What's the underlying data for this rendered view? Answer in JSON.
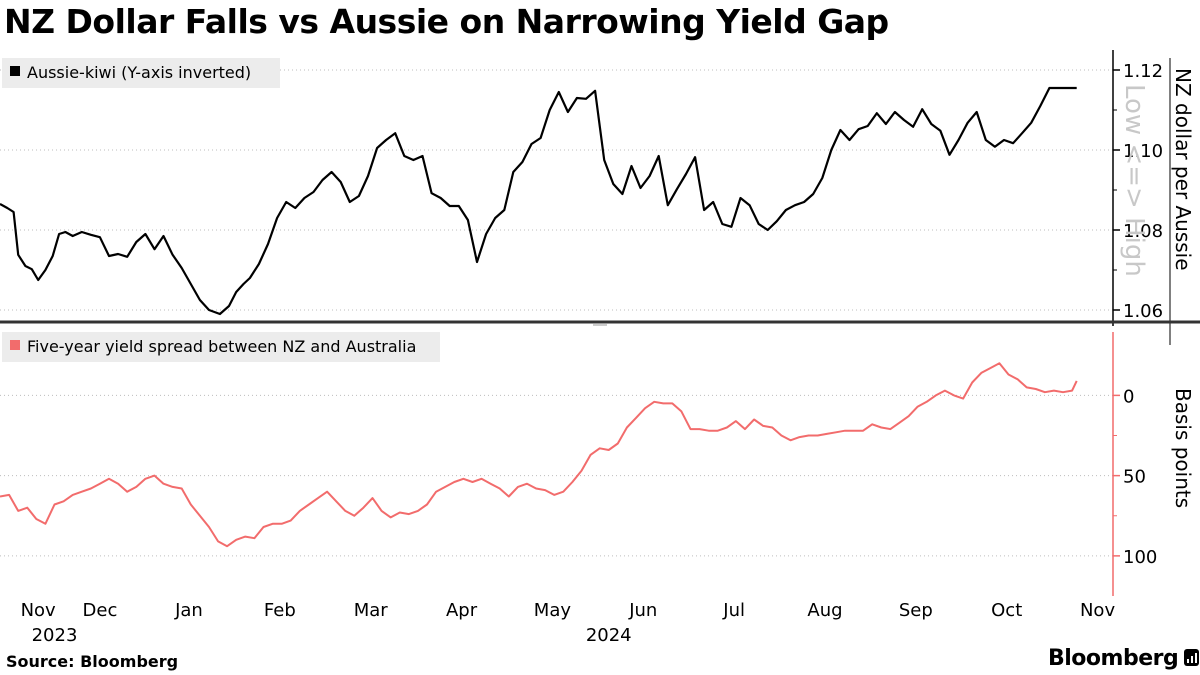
{
  "title": "NZ Dollar Falls vs Aussie on Narrowing Yield Gap",
  "source": "Source:  Bloomberg",
  "brand": "Bloomberg",
  "colors": {
    "line_top": "#000000",
    "line_bottom": "#f26c6c",
    "axis_bottom": "#f26c6c",
    "divider": "#333333",
    "grid": "#bdbdbd"
  },
  "chart_data": [
    {
      "type": "line",
      "title": "Aussie-kiwi (Y-axis inverted)",
      "legend": "Aussie-kiwi (Y-axis inverted)",
      "ylabel": "NZ dollar per Aussie",
      "ghost_label": "Low <=> High",
      "y_inverted": true,
      "ylim": [
        1.125,
        1.055
      ],
      "yticks": [
        1.06,
        1.08,
        1.1,
        1.12
      ],
      "ytick_labels": [
        "1.06",
        "1.08",
        "1.10",
        "1.12"
      ],
      "xlim": [
        0,
        12.25
      ],
      "series": [
        {
          "name": "Aussie-kiwi",
          "x": [
            0,
            0.08,
            0.15,
            0.2,
            0.28,
            0.35,
            0.42,
            0.5,
            0.58,
            0.65,
            0.72,
            0.8,
            0.9,
            1.0,
            1.1,
            1.2,
            1.3,
            1.4,
            1.5,
            1.6,
            1.7,
            1.8,
            1.9,
            2.0,
            2.1,
            2.2,
            2.3,
            2.42,
            2.52,
            2.6,
            2.68,
            2.75,
            2.85,
            2.95,
            3.05,
            3.15,
            3.25,
            3.35,
            3.45,
            3.55,
            3.65,
            3.75,
            3.85,
            3.95,
            4.05,
            4.15,
            4.25,
            4.35,
            4.45,
            4.55,
            4.65,
            4.75,
            4.85,
            4.95,
            5.05,
            5.15,
            5.25,
            5.35,
            5.45,
            5.55,
            5.65,
            5.75,
            5.85,
            5.95,
            6.05,
            6.15,
            6.25,
            6.35,
            6.45,
            6.55,
            6.65,
            6.75,
            6.85,
            6.95,
            7.05,
            7.15,
            7.25,
            7.35,
            7.45,
            7.55,
            7.65,
            7.75,
            7.85,
            7.95,
            8.05,
            8.15,
            8.25,
            8.35,
            8.45,
            8.55,
            8.65,
            8.75,
            8.85,
            8.95,
            9.05,
            9.15,
            9.25,
            9.35,
            9.45,
            9.55,
            9.65,
            9.75,
            9.85,
            9.95,
            10.05,
            10.15,
            10.25,
            10.35,
            10.45,
            10.55,
            10.65,
            10.75,
            10.85,
            10.95,
            11.05,
            11.15,
            11.25,
            11.35,
            11.45,
            11.55,
            11.65,
            11.75,
            11.85
          ],
          "values": [
            1.0865,
            1.0855,
            1.0845,
            1.0738,
            1.071,
            1.0702,
            1.0675,
            1.07,
            1.0735,
            1.079,
            1.0795,
            1.0785,
            1.0795,
            1.0788,
            1.0782,
            1.0735,
            1.074,
            1.0733,
            1.077,
            1.079,
            1.0752,
            1.0785,
            1.0738,
            1.0705,
            1.0665,
            1.0625,
            1.06,
            1.059,
            1.061,
            1.0645,
            1.0665,
            1.068,
            1.0715,
            1.0765,
            1.083,
            1.087,
            1.0855,
            1.088,
            1.0895,
            1.0925,
            1.0945,
            1.092,
            1.087,
            1.0885,
            1.0935,
            1.1005,
            1.1025,
            1.1042,
            1.0985,
            1.0975,
            1.0985,
            1.0892,
            1.088,
            1.086,
            1.086,
            1.0825,
            1.072,
            1.079,
            1.083,
            1.085,
            1.0945,
            1.097,
            1.1015,
            1.103,
            1.11,
            1.1145,
            1.1095,
            1.113,
            1.1128,
            1.1148,
            1.0975,
            1.0915,
            1.089,
            1.096,
            1.0905,
            1.0935,
            1.0985,
            1.0862,
            1.0902,
            1.094,
            1.0982,
            1.085,
            1.087,
            1.0815,
            1.0808,
            1.088,
            1.0862,
            1.0815,
            1.08,
            1.0822,
            1.085,
            1.0862,
            1.087,
            1.089,
            1.093,
            1.1,
            1.105,
            1.1025,
            1.1052,
            1.106,
            1.1092,
            1.1065,
            1.1095,
            1.1075,
            1.1058,
            1.1102,
            1.1065,
            1.1048,
            1.0988,
            1.1025,
            1.1068,
            1.1095,
            1.1025,
            1.1008,
            1.1025,
            1.1017,
            1.1042,
            1.1068,
            1.111,
            1.1155,
            1.1155,
            1.1155,
            1.1155
          ]
        }
      ]
    },
    {
      "type": "line",
      "title": "Five-year yield spread between NZ and Australia",
      "legend": "Five-year yield spread between NZ and Australia",
      "ylabel": "Basis points",
      "ylim": [
        -37,
        125
      ],
      "yticks": [
        0,
        50,
        100
      ],
      "ytick_labels": [
        "0",
        "50",
        "100"
      ],
      "xlim": [
        0,
        12.25
      ],
      "series": [
        {
          "name": "Five-year yield spread between NZ and Australia",
          "x": [
            0,
            0.1,
            0.2,
            0.3,
            0.4,
            0.5,
            0.6,
            0.7,
            0.8,
            0.9,
            1.0,
            1.1,
            1.2,
            1.3,
            1.4,
            1.5,
            1.6,
            1.7,
            1.8,
            1.9,
            2.0,
            2.1,
            2.2,
            2.3,
            2.4,
            2.5,
            2.6,
            2.7,
            2.8,
            2.9,
            3.0,
            3.1,
            3.2,
            3.3,
            3.4,
            3.5,
            3.6,
            3.7,
            3.8,
            3.9,
            4.0,
            4.1,
            4.2,
            4.3,
            4.4,
            4.5,
            4.6,
            4.7,
            4.8,
            4.9,
            5.0,
            5.1,
            5.2,
            5.3,
            5.4,
            5.5,
            5.6,
            5.7,
            5.8,
            5.9,
            6.0,
            6.1,
            6.2,
            6.3,
            6.4,
            6.5,
            6.6,
            6.7,
            6.8,
            6.9,
            7.0,
            7.1,
            7.2,
            7.3,
            7.4,
            7.5,
            7.6,
            7.7,
            7.8,
            7.9,
            8.0,
            8.1,
            8.2,
            8.3,
            8.4,
            8.5,
            8.6,
            8.7,
            8.8,
            8.9,
            9.0,
            9.1,
            9.2,
            9.3,
            9.4,
            9.5,
            9.6,
            9.7,
            9.8,
            9.9,
            10.0,
            10.1,
            10.2,
            10.3,
            10.4,
            10.5,
            10.6,
            10.7,
            10.8,
            10.9,
            11.0,
            11.1,
            11.2,
            11.3,
            11.4,
            11.5,
            11.6,
            11.7,
            11.8,
            11.85
          ],
          "values": [
            63,
            62,
            72,
            70,
            77,
            80,
            68,
            66,
            62,
            60,
            58,
            55,
            52,
            55,
            60,
            57,
            52,
            50,
            55,
            57,
            58,
            68,
            75,
            82,
            91,
            94,
            90,
            88,
            89,
            82,
            80,
            80,
            78,
            72,
            68,
            64,
            60,
            66,
            72,
            75,
            70,
            64,
            72,
            76,
            73,
            74,
            72,
            68,
            60,
            57,
            54,
            52,
            54,
            52,
            55,
            58,
            63,
            57,
            55,
            58,
            59,
            62,
            60,
            54,
            47,
            37,
            33,
            34,
            30,
            20,
            14,
            8,
            4,
            5,
            5,
            10,
            21,
            21,
            22,
            22,
            20,
            16,
            21,
            15,
            19,
            20,
            25,
            28,
            26,
            25,
            25,
            24,
            23,
            22,
            22,
            22,
            18,
            20,
            21,
            17,
            13,
            7,
            4,
            0,
            -3,
            0,
            2,
            -8,
            -14,
            -17,
            -20,
            -13,
            -10,
            -5,
            -4,
            -2,
            -3,
            -2,
            -3,
            -9
          ]
        }
      ]
    }
  ],
  "x_axis": {
    "months": [
      {
        "label": "Nov",
        "x": 0.42
      },
      {
        "label": "Dec",
        "x": 1.1
      },
      {
        "label": "Jan",
        "x": 2.08
      },
      {
        "label": "Feb",
        "x": 3.08
      },
      {
        "label": "Mar",
        "x": 4.08
      },
      {
        "label": "Apr",
        "x": 5.08
      },
      {
        "label": "May",
        "x": 6.08
      },
      {
        "label": "Jun",
        "x": 7.08
      },
      {
        "label": "Jul",
        "x": 8.08
      },
      {
        "label": "Aug",
        "x": 9.08
      },
      {
        "label": "Sep",
        "x": 10.08
      },
      {
        "label": "Oct",
        "x": 11.08
      },
      {
        "label": "Nov",
        "x": 12.08
      }
    ],
    "years": [
      {
        "label": "2023",
        "x": 0.6
      },
      {
        "label": "2024",
        "x": 6.7
      }
    ]
  }
}
